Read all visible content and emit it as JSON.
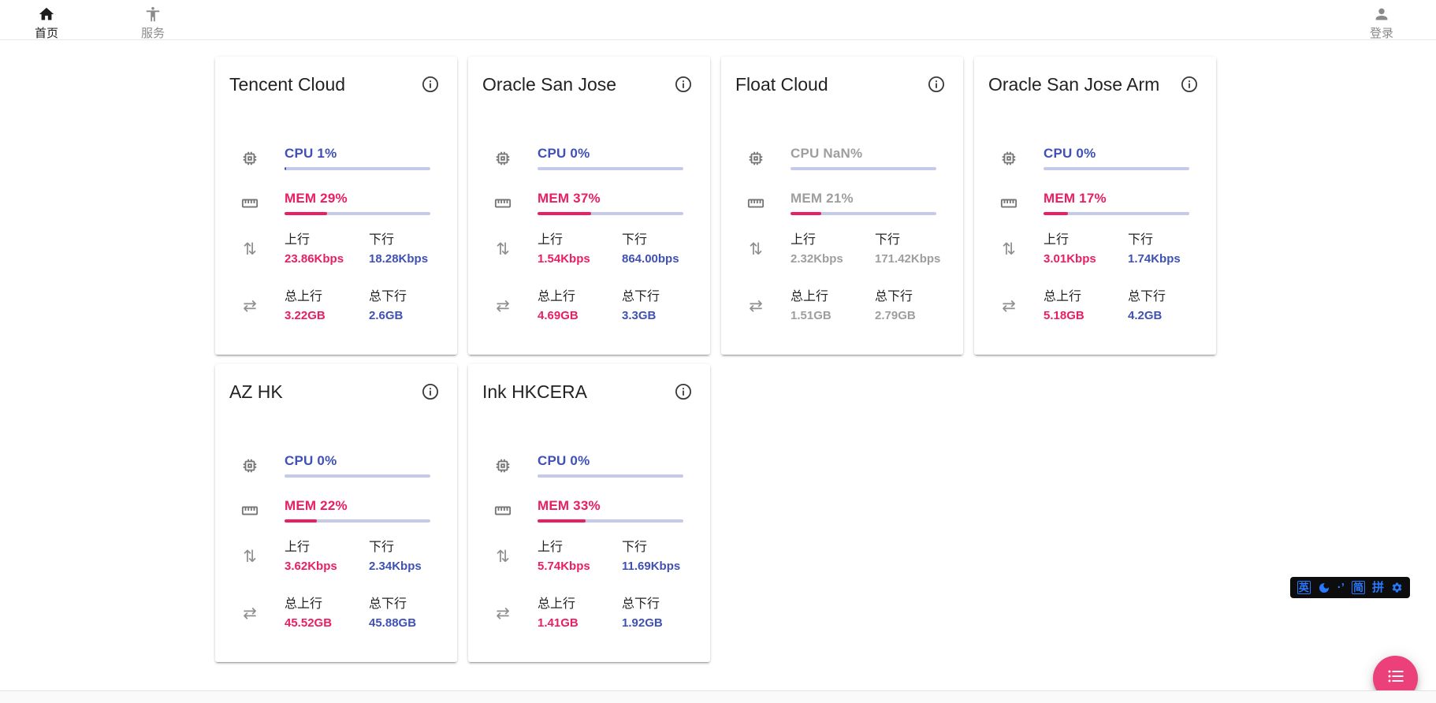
{
  "nav": {
    "items": [
      {
        "label": "首页",
        "icon": "home-icon",
        "active": true
      },
      {
        "label": "服务",
        "icon": "accessibility-icon",
        "active": false
      }
    ],
    "login_label": "登录"
  },
  "stat_labels": {
    "up": "上行",
    "down": "下行",
    "total_up": "总上行",
    "total_down": "总下行"
  },
  "servers": [
    {
      "name": "Tencent Cloud",
      "cpu_text": "CPU 1%",
      "cpu_pct": 1,
      "mem_text": "MEM 29%",
      "mem_pct": 29,
      "up_value": "23.86Kbps",
      "down_value": "18.28Kbps",
      "total_up_value": "3.22GB",
      "total_down_value": "2.6GB",
      "offline": false
    },
    {
      "name": "Oracle San Jose",
      "cpu_text": "CPU 0%",
      "cpu_pct": 0,
      "mem_text": "MEM 37%",
      "mem_pct": 37,
      "up_value": "1.54Kbps",
      "down_value": "864.00bps",
      "total_up_value": "4.69GB",
      "total_down_value": "3.3GB",
      "offline": false
    },
    {
      "name": "Float Cloud",
      "cpu_text": "CPU NaN%",
      "cpu_pct": 0,
      "mem_text": "MEM 21%",
      "mem_pct": 21,
      "up_value": "2.32Kbps",
      "down_value": "171.42Kbps",
      "total_up_value": "1.51GB",
      "total_down_value": "2.79GB",
      "offline": true
    },
    {
      "name": "Oracle San Jose Arm",
      "cpu_text": "CPU 0%",
      "cpu_pct": 0,
      "mem_text": "MEM 17%",
      "mem_pct": 17,
      "up_value": "3.01Kbps",
      "down_value": "1.74Kbps",
      "total_up_value": "5.18GB",
      "total_down_value": "4.2GB",
      "offline": false
    },
    {
      "name": "AZ HK",
      "cpu_text": "CPU 0%",
      "cpu_pct": 0,
      "mem_text": "MEM 22%",
      "mem_pct": 22,
      "up_value": "3.62Kbps",
      "down_value": "2.34Kbps",
      "total_up_value": "45.52GB",
      "total_down_value": "45.88GB",
      "offline": false
    },
    {
      "name": "Ink HKCERA",
      "cpu_text": "CPU 0%",
      "cpu_pct": 0,
      "mem_text": "MEM 33%",
      "mem_pct": 33,
      "up_value": "5.74Kbps",
      "down_value": "11.69Kbps",
      "total_up_value": "1.41GB",
      "total_down_value": "1.92GB",
      "offline": false
    }
  ],
  "ime": {
    "items": [
      {
        "type": "boxed",
        "label": "英",
        "name": "ime-english-mode"
      },
      {
        "type": "moon",
        "label": "",
        "name": "ime-fullwidth-moon-icon"
      },
      {
        "type": "text",
        "label": "·’",
        "name": "ime-punctuation-mode"
      },
      {
        "type": "boxed",
        "label": "简",
        "name": "ime-simplified-chinese"
      },
      {
        "type": "text",
        "label": "拼",
        "name": "ime-pinyin-mode"
      },
      {
        "type": "gear",
        "label": "",
        "name": "ime-settings-gear-icon"
      }
    ]
  },
  "colors": {
    "accent_blue": "#3f51b5",
    "accent_pink": "#e91e63",
    "bar_track": "#c5cae9",
    "muted_gray": "#9e9e9e",
    "fab_pink": "#ec407a",
    "ime_blue": "#2979ff"
  }
}
